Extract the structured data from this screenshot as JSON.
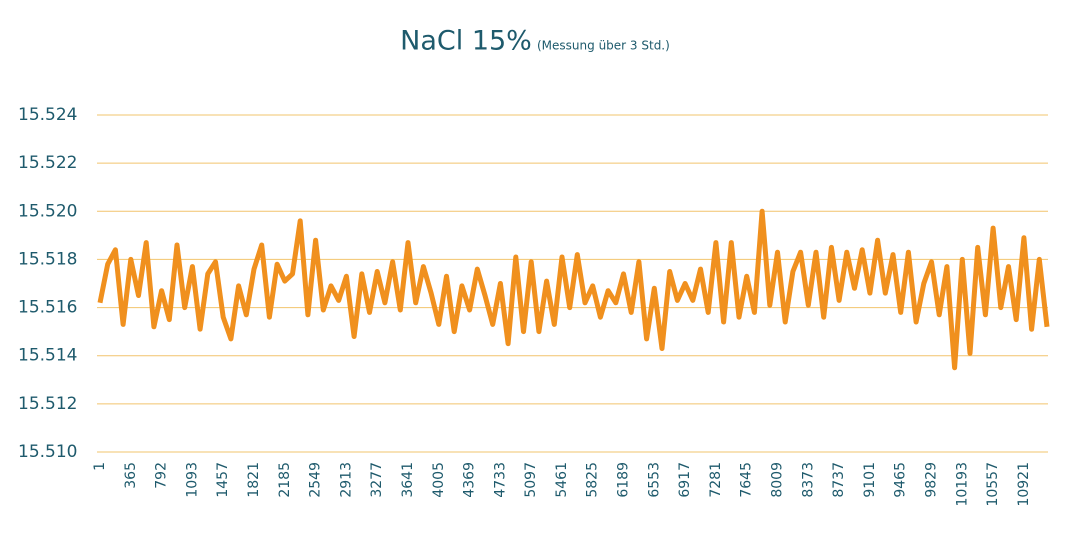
{
  "chart_data": {
    "type": "line",
    "title": "NaCl 15%",
    "subtitle": "(Messung über 3 Std.)",
    "categories": [
      "1",
      null,
      null,
      null,
      "365",
      null,
      null,
      null,
      "792",
      null,
      null,
      null,
      "1093",
      null,
      null,
      null,
      "1457",
      null,
      null,
      null,
      "1821",
      null,
      null,
      null,
      "2185",
      null,
      null,
      null,
      "2549",
      null,
      null,
      null,
      "2913",
      null,
      null,
      null,
      "3277",
      null,
      null,
      null,
      "3641",
      null,
      null,
      null,
      "4005",
      null,
      null,
      null,
      "4369",
      null,
      null,
      null,
      "4733",
      null,
      null,
      null,
      "5097",
      null,
      null,
      null,
      "5461",
      null,
      null,
      null,
      "5825",
      null,
      null,
      null,
      "6189",
      null,
      null,
      null,
      "6553",
      null,
      null,
      null,
      "6917",
      null,
      null,
      null,
      "7281",
      null,
      null,
      null,
      "7645",
      null,
      null,
      null,
      "8009",
      null,
      null,
      null,
      "8373",
      null,
      null,
      null,
      "8737",
      null,
      null,
      null,
      "9101",
      null,
      null,
      null,
      "9465",
      null,
      null,
      null,
      "9829",
      null,
      null,
      null,
      "10193",
      null,
      null,
      null,
      "10557",
      null,
      null,
      null,
      "10921",
      null,
      null,
      null
    ],
    "series": [
      {
        "color": "#f0901e",
        "values": [
          15.5162,
          15.5178,
          15.5184,
          15.5153,
          15.518,
          15.5165,
          15.5187,
          15.5152,
          15.5167,
          15.5155,
          15.5186,
          15.516,
          15.5177,
          15.5151,
          15.5174,
          15.5179,
          15.5156,
          15.5147,
          15.5169,
          15.5157,
          15.5176,
          15.5186,
          15.5156,
          15.5178,
          15.5171,
          15.5174,
          15.5196,
          15.5157,
          15.5188,
          15.5159,
          15.5169,
          15.5163,
          15.5173,
          15.5148,
          15.5174,
          15.5158,
          15.5175,
          15.5162,
          15.5179,
          15.5159,
          15.5187,
          15.5162,
          15.5177,
          15.5166,
          15.5153,
          15.5173,
          15.515,
          15.5169,
          15.5159,
          15.5176,
          15.5165,
          15.5153,
          15.517,
          15.5145,
          15.5181,
          15.515,
          15.5179,
          15.515,
          15.5171,
          15.5153,
          15.5181,
          15.516,
          15.5182,
          15.5162,
          15.5169,
          15.5156,
          15.5167,
          15.5162,
          15.5174,
          15.5158,
          15.5179,
          15.5147,
          15.5168,
          15.5143,
          15.5175,
          15.5163,
          15.517,
          15.5163,
          15.5176,
          15.5158,
          15.5187,
          15.5154,
          15.5187,
          15.5156,
          15.5173,
          15.5158,
          15.52,
          15.5161,
          15.5183,
          15.5154,
          15.5175,
          15.5183,
          15.5161,
          15.5183,
          15.5156,
          15.5185,
          15.5163,
          15.5183,
          15.5168,
          15.5184,
          15.5166,
          15.5188,
          15.5166,
          15.5182,
          15.5158,
          15.5183,
          15.5154,
          15.517,
          15.5179,
          15.5157,
          15.5177,
          15.5135,
          15.518,
          15.5141,
          15.5185,
          15.5157,
          15.5193,
          15.516,
          15.5177,
          15.5155,
          15.5189,
          15.5151,
          15.518,
          15.5152
        ]
      }
    ],
    "ylim": [
      15.51,
      15.524
    ],
    "yticks": [
      {
        "value": 15.51,
        "label": "15.510"
      },
      15.512,
      15.514,
      15.516,
      15.518,
      {
        "value": 15.52,
        "label": "15.520"
      },
      15.522,
      15.524
    ],
    "grid": true,
    "grid_color": "#f2c46d"
  }
}
